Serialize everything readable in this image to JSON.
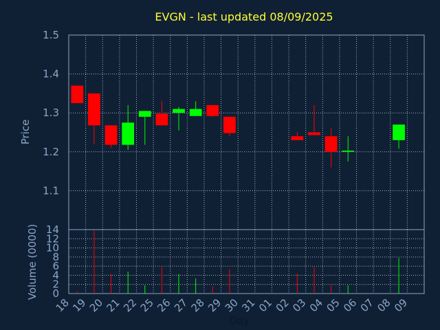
{
  "chart_data": {
    "type": "candlestick",
    "title": "EVGN - last updated 08/09/2025",
    "price_axis": {
      "label": "Price",
      "ylim": [
        1.0,
        1.5
      ],
      "ticks": [
        "1.5",
        "1.4",
        "1.3",
        "1.2",
        "1.1"
      ]
    },
    "volume_axis": {
      "label": "Volume (0000)",
      "ylim": [
        0,
        14
      ],
      "ticks": [
        "14",
        "12",
        "10",
        "8",
        "6",
        "4",
        "2",
        "0"
      ]
    },
    "x_axis": {
      "label": "Day",
      "ticks": [
        "18",
        "19",
        "20",
        "21",
        "22",
        "25",
        "26",
        "27",
        "28",
        "29",
        "30",
        "31",
        "01",
        "02",
        "03",
        "04",
        "05",
        "06",
        "07",
        "08",
        "09"
      ]
    },
    "grid": true,
    "colors": {
      "up": "#00ff00",
      "down": "#ff0000",
      "background": "#102034",
      "plot_border": "#8aa6c8",
      "title": "#ffff33"
    },
    "candles": [
      {
        "day": "18",
        "open": 1.37,
        "high": 1.37,
        "low": 1.325,
        "close": 1.325
      },
      {
        "day": "19",
        "open": 1.35,
        "high": 1.35,
        "low": 1.22,
        "close": 1.268
      },
      {
        "day": "20",
        "open": 1.268,
        "high": 1.268,
        "low": 1.21,
        "close": 1.218
      },
      {
        "day": "21",
        "open": 1.218,
        "high": 1.32,
        "low": 1.205,
        "close": 1.275
      },
      {
        "day": "22",
        "open": 1.29,
        "high": 1.305,
        "low": 1.218,
        "close": 1.305
      },
      {
        "day": "25",
        "open": 1.298,
        "high": 1.33,
        "low": 1.268,
        "close": 1.268
      },
      {
        "day": "26",
        "open": 1.3,
        "high": 1.315,
        "low": 1.255,
        "close": 1.31
      },
      {
        "day": "27",
        "open": 1.292,
        "high": 1.33,
        "low": 1.292,
        "close": 1.31
      },
      {
        "day": "28",
        "open": 1.32,
        "high": 1.32,
        "low": 1.29,
        "close": 1.292
      },
      {
        "day": "29",
        "open": 1.29,
        "high": 1.29,
        "low": 1.24,
        "close": 1.248
      },
      {
        "day": "02",
        "open": 1.24,
        "high": 1.25,
        "low": 1.23,
        "close": 1.23
      },
      {
        "day": "03",
        "open": 1.25,
        "high": 1.32,
        "low": 1.243,
        "close": 1.243
      },
      {
        "day": "04",
        "open": 1.24,
        "high": 1.26,
        "low": 1.16,
        "close": 1.2
      },
      {
        "day": "05",
        "open": 1.2,
        "high": 1.24,
        "low": 1.175,
        "close": 1.203
      },
      {
        "day": "08",
        "open": 1.23,
        "high": 1.27,
        "low": 1.208,
        "close": 1.27
      }
    ],
    "volume": [
      {
        "day": "18",
        "value": 0.5,
        "direction": "down"
      },
      {
        "day": "19",
        "value": 13.8,
        "direction": "down"
      },
      {
        "day": "20",
        "value": 4.3,
        "direction": "down"
      },
      {
        "day": "21",
        "value": 4.8,
        "direction": "up"
      },
      {
        "day": "22",
        "value": 1.8,
        "direction": "up"
      },
      {
        "day": "25",
        "value": 5.8,
        "direction": "down"
      },
      {
        "day": "26",
        "value": 4.3,
        "direction": "up"
      },
      {
        "day": "27",
        "value": 3.3,
        "direction": "up"
      },
      {
        "day": "28",
        "value": 1.5,
        "direction": "down"
      },
      {
        "day": "29",
        "value": 5.3,
        "direction": "down"
      },
      {
        "day": "02",
        "value": 4.3,
        "direction": "down"
      },
      {
        "day": "03",
        "value": 5.8,
        "direction": "down"
      },
      {
        "day": "04",
        "value": 1.8,
        "direction": "down"
      },
      {
        "day": "05",
        "value": 1.8,
        "direction": "up"
      },
      {
        "day": "08",
        "value": 7.8,
        "direction": "up"
      }
    ]
  }
}
